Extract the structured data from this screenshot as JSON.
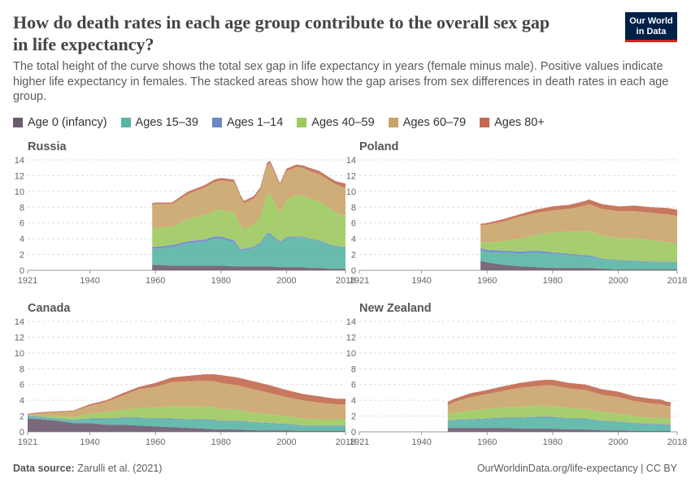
{
  "header": {
    "title": "How do death rates in each age group contribute to the overall sex gap in life expectancy?",
    "subtitle": "The total height of the curve shows the total sex gap in life expectancy in years (female minus male). Positive values indicate higher life expectancy in females. The stacked areas show how the gap arises from sex differences in death rates in each age group.",
    "logo_line1": "Our World",
    "logo_line2": "in Data"
  },
  "footer": {
    "source_label": "Data source:",
    "source_text": "Zarulli et al. (2021)",
    "credit": "OurWorldinData.org/life-expectancy | CC BY"
  },
  "chart_data": {
    "type": "area",
    "stacked": true,
    "ylim": [
      0,
      14
    ],
    "yticks": [
      0,
      2,
      4,
      6,
      8,
      10,
      12,
      14
    ],
    "xlim": [
      1921,
      2018
    ],
    "xticks": [
      1921,
      1940,
      1960,
      1980,
      2000,
      2018
    ],
    "legend_placement": "top-left",
    "grid": "horizontal dashed",
    "series": [
      {
        "name": "Age 0 (infancy)",
        "color": "#6c5b6e"
      },
      {
        "name": "Ages 15–39",
        "color": "#57b5a5"
      },
      {
        "name": "Ages 1–14",
        "color": "#6a87c6"
      },
      {
        "name": "Ages 40–59",
        "color": "#9cc95f"
      },
      {
        "name": "Ages 60–79",
        "color": "#c9a46a"
      },
      {
        "name": "Ages 80+",
        "color": "#c2694f"
      }
    ],
    "panels": [
      {
        "name": "Russia",
        "x": [
          1959,
          1960,
          1965,
          1970,
          1975,
          1978,
          1980,
          1984,
          1986,
          1987,
          1990,
          1992,
          1994,
          1995,
          1998,
          2000,
          2003,
          2005,
          2007,
          2010,
          2013,
          2015,
          2017,
          2018
        ],
        "stacks": [
          [
            0.7,
            0.7,
            0.6,
            0.6,
            0.6,
            0.6,
            0.6,
            0.5,
            0.5,
            0.5,
            0.5,
            0.5,
            0.5,
            0.5,
            0.4,
            0.4,
            0.4,
            0.4,
            0.3,
            0.3,
            0.2,
            0.2,
            0.2,
            0.2
          ],
          [
            2.0,
            2.0,
            2.3,
            2.8,
            3.0,
            3.4,
            3.4,
            3.0,
            2.0,
            2.0,
            2.3,
            2.8,
            4.0,
            4.0,
            3.0,
            3.6,
            3.8,
            3.8,
            3.6,
            3.4,
            3.0,
            2.8,
            2.7,
            2.7
          ],
          [
            0.3,
            0.3,
            0.3,
            0.3,
            0.3,
            0.3,
            0.3,
            0.3,
            0.2,
            0.2,
            0.2,
            0.2,
            0.2,
            0.2,
            0.2,
            0.2,
            0.1,
            0.1,
            0.1,
            0.1,
            0.1,
            0.1,
            0.1,
            0.1
          ],
          [
            2.4,
            2.4,
            2.3,
            2.8,
            3.1,
            3.3,
            3.4,
            3.5,
            3.0,
            2.5,
            2.8,
            3.3,
            4.8,
            5.0,
            3.6,
            4.8,
            5.2,
            5.2,
            5.1,
            4.9,
            4.6,
            4.3,
            4.0,
            3.9
          ],
          [
            2.9,
            3.0,
            2.9,
            3.2,
            3.5,
            3.6,
            3.7,
            3.9,
            3.5,
            3.3,
            3.3,
            3.4,
            3.8,
            3.9,
            3.5,
            3.6,
            3.6,
            3.5,
            3.5,
            3.5,
            3.5,
            3.5,
            3.6,
            3.6
          ],
          [
            0.2,
            0.2,
            0.2,
            0.3,
            0.3,
            0.3,
            0.3,
            0.3,
            0.3,
            0.3,
            0.3,
            0.3,
            0.3,
            0.3,
            0.3,
            0.3,
            0.3,
            0.3,
            0.4,
            0.4,
            0.4,
            0.4,
            0.5,
            0.5
          ]
        ]
      },
      {
        "name": "Poland",
        "x": [
          1958,
          1960,
          1965,
          1970,
          1975,
          1980,
          1985,
          1990,
          1991,
          1995,
          2000,
          2005,
          2010,
          2015,
          2018
        ],
        "stacks": [
          [
            1.2,
            1.0,
            0.7,
            0.5,
            0.4,
            0.3,
            0.3,
            0.3,
            0.3,
            0.2,
            0.1,
            0.1,
            0.1,
            0.1,
            0.1
          ],
          [
            1.3,
            1.3,
            1.5,
            1.6,
            1.8,
            1.8,
            1.6,
            1.4,
            1.4,
            1.2,
            1.1,
            1.0,
            0.9,
            0.9,
            0.8
          ],
          [
            0.3,
            0.3,
            0.3,
            0.3,
            0.3,
            0.2,
            0.2,
            0.2,
            0.2,
            0.1,
            0.1,
            0.1,
            0.1,
            0.1,
            0.1
          ],
          [
            0.8,
            0.9,
            1.2,
            1.6,
            2.0,
            2.5,
            2.8,
            3.0,
            3.1,
            2.9,
            2.8,
            2.9,
            2.7,
            2.5,
            2.3
          ],
          [
            2.1,
            2.3,
            2.5,
            2.8,
            2.8,
            2.8,
            2.9,
            3.3,
            3.4,
            3.4,
            3.4,
            3.4,
            3.5,
            3.5,
            3.6
          ],
          [
            0.2,
            0.2,
            0.3,
            0.3,
            0.4,
            0.5,
            0.5,
            0.6,
            0.6,
            0.6,
            0.6,
            0.7,
            0.7,
            0.8,
            0.8
          ]
        ]
      },
      {
        "name": "Canada",
        "x": [
          1921,
          1925,
          1930,
          1935,
          1940,
          1945,
          1950,
          1955,
          1960,
          1965,
          1970,
          1975,
          1978,
          1980,
          1985,
          1990,
          1995,
          2000,
          2005,
          2010,
          2015,
          2018
        ],
        "stacks": [
          [
            1.7,
            1.6,
            1.4,
            1.1,
            1.1,
            0.9,
            0.9,
            0.8,
            0.7,
            0.6,
            0.5,
            0.4,
            0.3,
            0.3,
            0.3,
            0.2,
            0.2,
            0.2,
            0.1,
            0.1,
            0.1,
            0.1
          ],
          [
            0.2,
            0.2,
            0.2,
            0.3,
            0.5,
            0.7,
            0.8,
            0.9,
            0.9,
            1.0,
            1.0,
            1.1,
            1.1,
            1.0,
            1.0,
            0.9,
            0.8,
            0.7,
            0.6,
            0.6,
            0.6,
            0.6
          ],
          [
            0.1,
            0.1,
            0.1,
            0.1,
            0.1,
            0.1,
            0.1,
            0.1,
            0.1,
            0.1,
            0.1,
            0.1,
            0.1,
            0.1,
            0.1,
            0.1,
            0.1,
            0.1,
            0.1,
            0.1,
            0.1,
            0.1
          ],
          [
            0.1,
            0.2,
            0.3,
            0.4,
            0.6,
            0.8,
            1.0,
            1.2,
            1.4,
            1.6,
            1.6,
            1.6,
            1.6,
            1.5,
            1.4,
            1.2,
            1.1,
            1.0,
            0.9,
            0.8,
            0.8,
            0.8
          ],
          [
            0.1,
            0.3,
            0.5,
            0.7,
            1.0,
            1.3,
            1.8,
            2.4,
            2.6,
            3.0,
            3.2,
            3.3,
            3.3,
            3.3,
            3.1,
            3.0,
            2.7,
            2.4,
            2.3,
            2.1,
            1.9,
            1.9
          ],
          [
            0.1,
            0.1,
            0.1,
            0.1,
            0.2,
            0.2,
            0.3,
            0.3,
            0.5,
            0.6,
            0.7,
            0.8,
            0.9,
            1.0,
            1.0,
            1.0,
            1.0,
            0.9,
            0.8,
            0.8,
            0.7,
            0.7
          ]
        ]
      },
      {
        "name": "New Zealand",
        "x": [
          1948,
          1950,
          1955,
          1960,
          1965,
          1970,
          1975,
          1978,
          1980,
          1985,
          1990,
          1995,
          2000,
          2005,
          2010,
          2013,
          2015,
          2016
        ],
        "stacks": [
          [
            0.5,
            0.5,
            0.5,
            0.5,
            0.5,
            0.4,
            0.4,
            0.4,
            0.4,
            0.3,
            0.3,
            0.2,
            0.2,
            0.1,
            0.1,
            0.1,
            0.1,
            0.1
          ],
          [
            0.8,
            0.9,
            1.0,
            1.1,
            1.2,
            1.3,
            1.4,
            1.4,
            1.4,
            1.3,
            1.3,
            1.1,
            1.0,
            0.9,
            0.8,
            0.8,
            0.7,
            0.7
          ],
          [
            0.1,
            0.1,
            0.1,
            0.1,
            0.1,
            0.1,
            0.1,
            0.1,
            0.1,
            0.1,
            0.1,
            0.1,
            0.1,
            0.1,
            0.1,
            0.1,
            0.1,
            0.1
          ],
          [
            0.8,
            0.9,
            1.1,
            1.2,
            1.3,
            1.4,
            1.4,
            1.4,
            1.4,
            1.3,
            1.2,
            1.1,
            1.0,
            0.9,
            0.8,
            0.8,
            0.8,
            0.8
          ],
          [
            1.2,
            1.4,
            1.7,
            1.9,
            2.1,
            2.4,
            2.5,
            2.6,
            2.6,
            2.5,
            2.4,
            2.2,
            2.1,
            1.9,
            1.8,
            1.7,
            1.6,
            1.6
          ],
          [
            0.4,
            0.4,
            0.5,
            0.5,
            0.6,
            0.6,
            0.7,
            0.7,
            0.7,
            0.7,
            0.7,
            0.7,
            0.7,
            0.6,
            0.6,
            0.6,
            0.5,
            0.5
          ]
        ]
      }
    ]
  }
}
